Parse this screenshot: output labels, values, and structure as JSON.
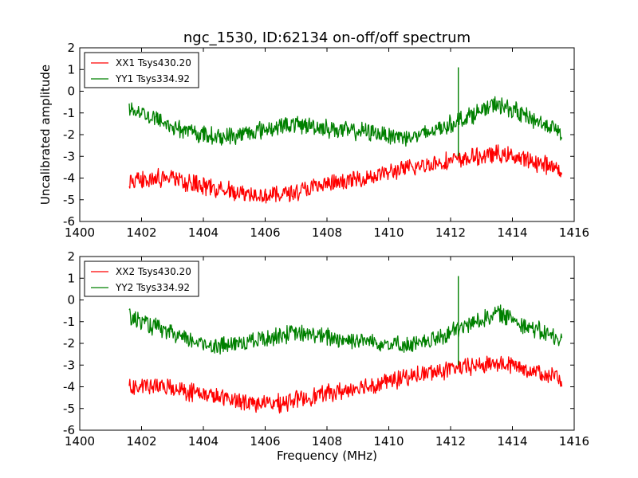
{
  "chart_data": [
    {
      "type": "line",
      "title": "ngc_1530, ID:62134 on-off/off spectrum",
      "xlabel": "",
      "ylabel": "Uncalibrated amplitude",
      "xlim": [
        1400,
        1416
      ],
      "ylim": [
        -6,
        2
      ],
      "xticks": [
        1400,
        1402,
        1404,
        1406,
        1408,
        1410,
        1412,
        1414,
        1416
      ],
      "yticks": [
        -6,
        -5,
        -4,
        -3,
        -2,
        -1,
        0,
        1,
        2
      ],
      "legend_position": "upper-left",
      "grid": false,
      "series": [
        {
          "name": "XX1 Tsys430.20",
          "color": "#ff0000",
          "x": [
            1401.6,
            1402.0,
            1402.5,
            1403.0,
            1403.5,
            1404.0,
            1404.5,
            1405.0,
            1405.5,
            1406.0,
            1406.5,
            1407.0,
            1407.5,
            1408.0,
            1408.5,
            1409.0,
            1409.5,
            1410.0,
            1410.5,
            1411.0,
            1411.5,
            1412.0,
            1412.5,
            1413.0,
            1413.5,
            1414.0,
            1414.5,
            1415.0,
            1415.6
          ],
          "y": [
            -4.1,
            -4.0,
            -4.0,
            -4.05,
            -4.2,
            -4.35,
            -4.5,
            -4.6,
            -4.7,
            -4.8,
            -4.75,
            -4.6,
            -4.45,
            -4.3,
            -4.2,
            -4.05,
            -3.9,
            -3.75,
            -3.6,
            -3.45,
            -3.3,
            -3.2,
            -3.1,
            -3.0,
            -2.9,
            -3.0,
            -3.2,
            -3.35,
            -3.65
          ]
        },
        {
          "name": "YY1 Tsys334.92",
          "color": "#008000",
          "x": [
            1401.6,
            1402.0,
            1402.5,
            1403.0,
            1403.5,
            1404.0,
            1404.5,
            1405.0,
            1405.5,
            1406.0,
            1406.5,
            1407.0,
            1407.5,
            1408.0,
            1408.5,
            1409.0,
            1409.5,
            1410.0,
            1410.5,
            1411.0,
            1411.5,
            1412.0,
            1412.5,
            1413.0,
            1413.5,
            1414.0,
            1414.5,
            1415.0,
            1415.6
          ],
          "y": [
            -0.8,
            -1.0,
            -1.3,
            -1.6,
            -1.85,
            -2.0,
            -2.1,
            -2.05,
            -1.9,
            -1.75,
            -1.6,
            -1.55,
            -1.6,
            -1.7,
            -1.8,
            -1.85,
            -1.9,
            -2.0,
            -2.1,
            -2.05,
            -1.8,
            -1.5,
            -1.2,
            -0.9,
            -0.6,
            -0.85,
            -1.2,
            -1.5,
            -1.9
          ]
        }
      ],
      "spike": {
        "x": 1412.25,
        "y_top": 1.1,
        "y_bottom": -3.0
      }
    },
    {
      "type": "line",
      "title": "",
      "xlabel": "Frequency (MHz)",
      "ylabel": "",
      "xlim": [
        1400,
        1416
      ],
      "ylim": [
        -6,
        2
      ],
      "xticks": [
        1400,
        1402,
        1404,
        1406,
        1408,
        1410,
        1412,
        1414,
        1416
      ],
      "yticks": [
        -6,
        -5,
        -4,
        -3,
        -2,
        -1,
        0,
        1,
        2
      ],
      "legend_position": "upper-left",
      "grid": false,
      "series": [
        {
          "name": "XX2 Tsys430.20",
          "color": "#ff0000",
          "x": [
            1401.6,
            1402.0,
            1402.5,
            1403.0,
            1403.5,
            1404.0,
            1404.5,
            1405.0,
            1405.5,
            1406.0,
            1406.5,
            1407.0,
            1407.5,
            1408.0,
            1408.5,
            1409.0,
            1409.5,
            1410.0,
            1410.5,
            1411.0,
            1411.5,
            1412.0,
            1412.5,
            1413.0,
            1413.5,
            1414.0,
            1414.5,
            1415.0,
            1415.6
          ],
          "y": [
            -4.05,
            -4.0,
            -4.0,
            -4.05,
            -4.2,
            -4.35,
            -4.5,
            -4.6,
            -4.7,
            -4.8,
            -4.75,
            -4.6,
            -4.45,
            -4.3,
            -4.2,
            -4.05,
            -3.9,
            -3.75,
            -3.6,
            -3.45,
            -3.3,
            -3.2,
            -3.1,
            -3.0,
            -2.9,
            -3.0,
            -3.2,
            -3.35,
            -3.65
          ]
        },
        {
          "name": "YY2 Tsys334.92",
          "color": "#008000",
          "x": [
            1401.6,
            1402.0,
            1402.5,
            1403.0,
            1403.5,
            1404.0,
            1404.5,
            1405.0,
            1405.5,
            1406.0,
            1406.5,
            1407.0,
            1407.5,
            1408.0,
            1408.5,
            1409.0,
            1409.5,
            1410.0,
            1410.5,
            1411.0,
            1411.5,
            1412.0,
            1412.5,
            1413.0,
            1413.5,
            1414.0,
            1414.5,
            1415.0,
            1415.6
          ],
          "y": [
            -0.8,
            -1.0,
            -1.3,
            -1.6,
            -1.85,
            -2.0,
            -2.1,
            -2.05,
            -1.9,
            -1.75,
            -1.6,
            -1.55,
            -1.6,
            -1.7,
            -1.8,
            -1.85,
            -1.9,
            -2.0,
            -2.1,
            -2.05,
            -1.8,
            -1.5,
            -1.2,
            -0.9,
            -0.6,
            -0.85,
            -1.2,
            -1.5,
            -1.9
          ]
        }
      ],
      "spike": {
        "x": 1412.25,
        "y_top": 1.1,
        "y_bottom": -3.0
      }
    }
  ]
}
